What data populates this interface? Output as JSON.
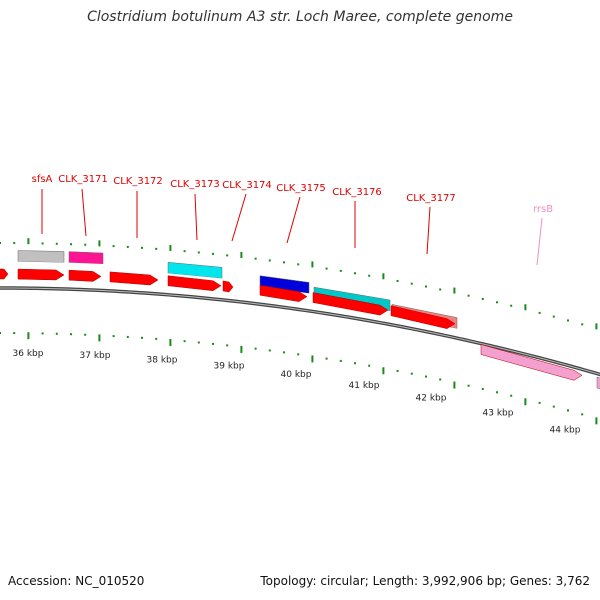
{
  "title": "Clostridium botulinum A3 str. Loch Maree, complete genome",
  "footer": {
    "accession": "Accession: NC_010520",
    "summary": "Topology: circular; Length: 3,992,906 bp; Genes: 3,762"
  },
  "colors": {
    "backbone": "#7f7f7f",
    "cds_track": "#ff0000",
    "tick": "#1a8a1a",
    "label": "#e00000",
    "rrna_label": "#f08fc0"
  },
  "feature_labels": [
    {
      "text": "sfsA",
      "color": "#e00000"
    },
    {
      "text": "CLK_3171",
      "color": "#e00000"
    },
    {
      "text": "CLK_3172",
      "color": "#e00000"
    },
    {
      "text": "CLK_3173",
      "color": "#e00000"
    },
    {
      "text": "CLK_3174",
      "color": "#e00000"
    },
    {
      "text": "CLK_3175",
      "color": "#e00000"
    },
    {
      "text": "CLK_3176",
      "color": "#e00000"
    },
    {
      "text": "CLK_3177",
      "color": "#e00000"
    },
    {
      "text": "rrsB",
      "color": "#f08fc0"
    }
  ],
  "scale_labels": [
    "36 kbp",
    "37 kbp",
    "38 kbp",
    "39 kbp",
    "40 kbp",
    "41 kbp",
    "42 kbp",
    "43 kbp",
    "44 kbp"
  ],
  "cog_features": [
    {
      "color": "#c0c0c0"
    },
    {
      "color": "#ff1493"
    },
    {
      "color": "#00e5ee"
    },
    {
      "color": "#0000dd"
    },
    {
      "color": "#00c8c8"
    },
    {
      "color": "#f08080"
    }
  ]
}
